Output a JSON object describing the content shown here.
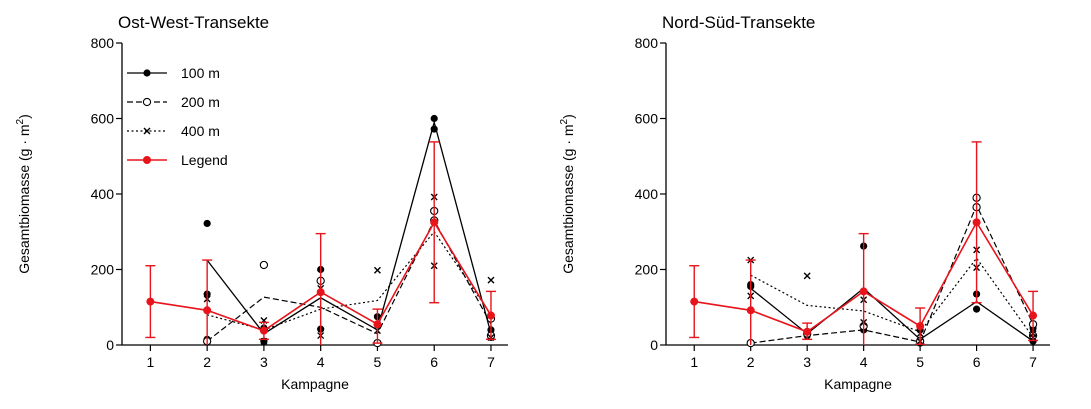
{
  "chart_data": [
    {
      "type": "line",
      "title": "Ost-West-Transekte",
      "xlabel": "Kampagne",
      "ylabel": "Gesamtbiomasse (g · m²)",
      "ylabel_main": "Gesamtbiomasse (g · m",
      "ylabel_sup": "2",
      "ylabel_end": ")",
      "ylim": [
        0,
        800
      ],
      "xlim": [
        0.5,
        7.3
      ],
      "xticks": [
        1,
        2,
        3,
        4,
        5,
        6,
        7
      ],
      "yticks": [
        0,
        200,
        400,
        600,
        800
      ],
      "colors": {
        "black": "#000000",
        "red": "#e8141b"
      },
      "legend": {
        "placement": "top-left",
        "entries": [
          "100 m",
          "200 m",
          "400 m",
          "Legend"
        ]
      },
      "series": [
        {
          "name": "100 m",
          "style": "solid",
          "marker": "filled-circle",
          "line": [
            [
              2,
              225
            ],
            [
              3,
              30
            ],
            [
              4,
              125
            ],
            [
              5,
              40
            ],
            [
              6,
              590
            ],
            [
              7,
              30
            ]
          ],
          "points": [
            [
              2,
              322
            ],
            [
              2,
              135
            ],
            [
              2,
              15
            ],
            [
              3,
              10
            ],
            [
              3,
              45
            ],
            [
              4,
              200
            ],
            [
              4,
              42
            ],
            [
              5,
              75
            ],
            [
              5,
              5
            ],
            [
              6,
              600
            ],
            [
              6,
              572
            ],
            [
              7,
              40
            ],
            [
              7,
              20
            ]
          ]
        },
        {
          "name": "200 m",
          "style": "dashed",
          "marker": "open-circle",
          "line": [
            [
              2,
              10
            ],
            [
              3,
              127
            ],
            [
              4,
              100
            ],
            [
              5,
              30
            ],
            [
              6,
              330
            ],
            [
              7,
              55
            ]
          ],
          "points": [
            [
              2,
              10
            ],
            [
              3,
              212
            ],
            [
              3,
              40
            ],
            [
              4,
              170
            ],
            [
              5,
              5
            ],
            [
              6,
              355
            ],
            [
              6,
              330
            ],
            [
              7,
              70
            ],
            [
              7,
              25
            ]
          ]
        },
        {
          "name": "400 m",
          "style": "dotted",
          "marker": "x",
          "line": [
            [
              2,
              80
            ],
            [
              3,
              40
            ],
            [
              4,
              95
            ],
            [
              5,
              118
            ],
            [
              6,
              300
            ],
            [
              7,
              80
            ]
          ],
          "points": [
            [
              2,
              122
            ],
            [
              3,
              65
            ],
            [
              3,
              10
            ],
            [
              4,
              150
            ],
            [
              4,
              25
            ],
            [
              5,
              198
            ],
            [
              5,
              38
            ],
            [
              6,
              392
            ],
            [
              6,
              210
            ],
            [
              7,
              172
            ],
            [
              7,
              20
            ]
          ]
        },
        {
          "name": "Legend",
          "style": "solid-red",
          "marker": "red-filled-circle",
          "line": [
            [
              1,
              115
            ],
            [
              2,
              92
            ],
            [
              3,
              38
            ],
            [
              4,
              140
            ],
            [
              5,
              55
            ],
            [
              6,
              325
            ],
            [
              7,
              78
            ]
          ],
          "errors": [
            [
              20,
              210
            ],
            [
              -30,
              225
            ],
            [
              15,
              60
            ],
            [
              -20,
              295
            ],
            [
              5,
              95
            ],
            [
              112,
              538
            ],
            [
              15,
              142
            ]
          ]
        }
      ]
    },
    {
      "type": "line",
      "title": "Nord-Süd-Transekte",
      "xlabel": "Kampagne",
      "ylabel": "Gesamtbiomasse (g · m²)",
      "ylabel_main": "Gesamtbiomasse (g · m",
      "ylabel_sup": "2",
      "ylabel_end": ")",
      "ylim": [
        0,
        800
      ],
      "xlim": [
        0.5,
        7.3
      ],
      "xticks": [
        1,
        2,
        3,
        4,
        5,
        6,
        7
      ],
      "yticks": [
        0,
        200,
        400,
        600,
        800
      ],
      "colors": {
        "black": "#000000",
        "red": "#e8141b"
      },
      "series": [
        {
          "name": "100 m",
          "style": "solid",
          "marker": "filled-circle",
          "line": [
            [
              2,
              150
            ],
            [
              3,
              30
            ],
            [
              4,
              150
            ],
            [
              5,
              15
            ],
            [
              6,
              115
            ],
            [
              7,
              10
            ]
          ],
          "points": [
            [
              2,
              160
            ],
            [
              2,
              155
            ],
            [
              3,
              25
            ],
            [
              3,
              35
            ],
            [
              4,
              262
            ],
            [
              4,
              40
            ],
            [
              5,
              40
            ],
            [
              5,
              5
            ],
            [
              6,
              135
            ],
            [
              6,
              95
            ],
            [
              7,
              45
            ],
            [
              7,
              10
            ]
          ]
        },
        {
          "name": "200 m",
          "style": "dashed",
          "marker": "open-circle",
          "line": [
            [
              2,
              5
            ],
            [
              3,
              25
            ],
            [
              4,
              40
            ],
            [
              5,
              8
            ],
            [
              6,
              370
            ],
            [
              7,
              55
            ]
          ],
          "points": [
            [
              2,
              5
            ],
            [
              3,
              30
            ],
            [
              4,
              50
            ],
            [
              5,
              10
            ],
            [
              6,
              390
            ],
            [
              6,
              365
            ],
            [
              7,
              55
            ],
            [
              7,
              25
            ]
          ]
        },
        {
          "name": "400 m",
          "style": "dotted",
          "marker": "x",
          "line": [
            [
              2,
              185
            ],
            [
              3,
              105
            ],
            [
              4,
              90
            ],
            [
              5,
              35
            ],
            [
              6,
              230
            ],
            [
              7,
              20
            ]
          ],
          "points": [
            [
              2,
              225
            ],
            [
              2,
              130
            ],
            [
              3,
              183
            ],
            [
              4,
              120
            ],
            [
              4,
              60
            ],
            [
              5,
              30
            ],
            [
              5,
              10
            ],
            [
              6,
              252
            ],
            [
              6,
              205
            ],
            [
              7,
              20
            ],
            [
              7,
              30
            ]
          ]
        },
        {
          "name": "Legend",
          "style": "solid-red",
          "marker": "red-filled-circle",
          "line": [
            [
              1,
              115
            ],
            [
              2,
              92
            ],
            [
              3,
              35
            ],
            [
              4,
              142
            ],
            [
              5,
              50
            ],
            [
              6,
              325
            ],
            [
              7,
              78
            ]
          ],
          "errors": [
            [
              20,
              210
            ],
            [
              -30,
              225
            ],
            [
              15,
              58
            ],
            [
              -20,
              295
            ],
            [
              2,
              98
            ],
            [
              112,
              538
            ],
            [
              12,
              142
            ]
          ]
        }
      ]
    }
  ]
}
